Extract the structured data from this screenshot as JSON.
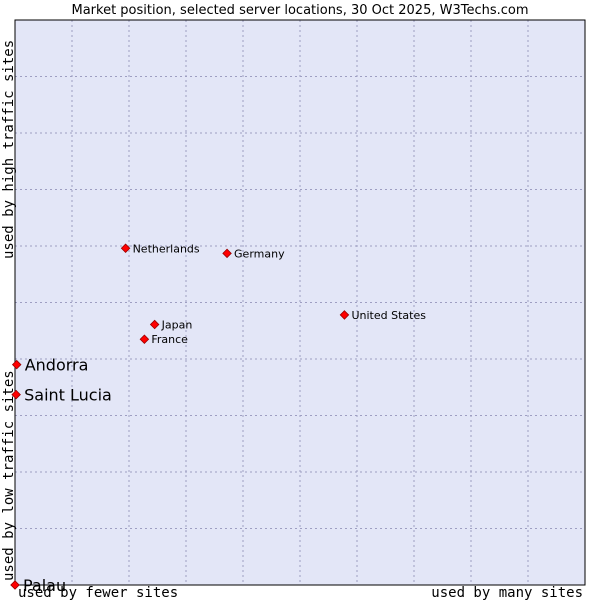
{
  "chart_data": {
    "type": "scatter",
    "title": "Market position, selected server locations, 30 Oct 2025, W3Techs.com",
    "xlabel_left": "used by fewer sites",
    "xlabel_right": "used by many sites",
    "ylabel_bottom": "used by low traffic sites",
    "ylabel_top": "used by high traffic sites",
    "xlim": [
      0,
      100
    ],
    "ylim": [
      0,
      100
    ],
    "grid": true,
    "colors": {
      "plot_bg": "#e3e6f7",
      "grid": "#9e9ec2",
      "marker": "#ff0000",
      "marker_edge": "#990000"
    },
    "points": [
      {
        "name": "Netherlands",
        "x": 19.4,
        "y": 59.6,
        "emphasis": false
      },
      {
        "name": "Germany",
        "x": 37.2,
        "y": 58.7,
        "emphasis": false
      },
      {
        "name": "United States",
        "x": 57.8,
        "y": 47.8,
        "emphasis": false
      },
      {
        "name": "Japan",
        "x": 24.5,
        "y": 46.1,
        "emphasis": false
      },
      {
        "name": "France",
        "x": 22.7,
        "y": 43.5,
        "emphasis": false
      },
      {
        "name": "Andorra",
        "x": 0.3,
        "y": 39.0,
        "emphasis": true
      },
      {
        "name": "Saint Lucia",
        "x": 0.2,
        "y": 33.7,
        "emphasis": true
      },
      {
        "name": "Palau",
        "x": 0.0,
        "y": 0.0,
        "emphasis": true
      }
    ]
  }
}
